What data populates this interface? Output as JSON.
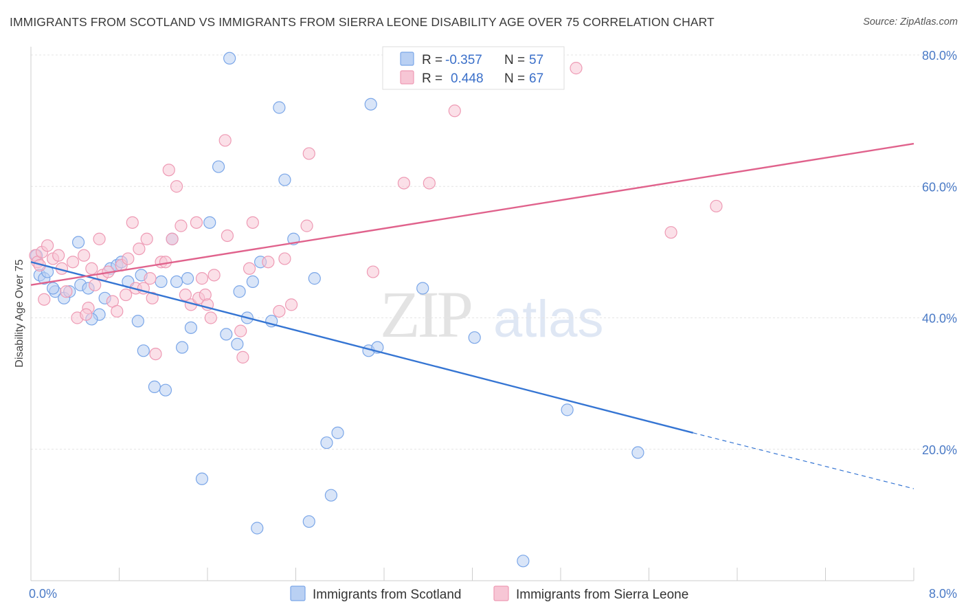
{
  "title": "IMMIGRANTS FROM SCOTLAND VS IMMIGRANTS FROM SIERRA LEONE DISABILITY AGE OVER 75 CORRELATION CHART",
  "source": "Source: ZipAtlas.com",
  "watermark": {
    "zip": "ZIP",
    "atlas": "atlas"
  },
  "legend": {
    "r_label": "R =",
    "n_label": "N =",
    "rows": [
      {
        "r": "-0.357",
        "n": "57",
        "color": "#7aa6e8",
        "fill": "#b9d0f3"
      },
      {
        "r": "0.448",
        "n": "67",
        "color": "#ee9ab4",
        "fill": "#f7c6d5"
      }
    ]
  },
  "chart_data": {
    "type": "scatter",
    "title": "IMMIGRANTS FROM SCOTLAND VS IMMIGRANTS FROM SIERRA LEONE DISABILITY AGE OVER 75 CORRELATION CHART",
    "xlabel": "",
    "ylabel": "Disability Age Over 75",
    "xlim": [
      0,
      8
    ],
    "ylim": [
      0,
      80
    ],
    "x_tick_labels": [
      "0.0%",
      "8.0%"
    ],
    "y_ticks": [
      20,
      40,
      60,
      80
    ],
    "y_tick_labels": [
      "20.0%",
      "40.0%",
      "60.0%",
      "80.0%"
    ],
    "grid": true,
    "legend_position": "top-center",
    "series": [
      {
        "name": "Immigrants from Scotland",
        "color": "#7aa6e8",
        "fill": "#b9d0f3",
        "line_color": "#3575d3",
        "trend": {
          "x0": 0,
          "y0": 48.5,
          "x1": 6.0,
          "y1": 22.5,
          "dash_to_x": 8.0,
          "dash_to_y": 14.0
        },
        "points": [
          [
            0.05,
            49.5
          ],
          [
            0.08,
            46.5
          ],
          [
            0.12,
            46.0
          ],
          [
            0.15,
            47.0
          ],
          [
            0.22,
            44.0
          ],
          [
            0.3,
            43.0
          ],
          [
            0.43,
            51.5
          ],
          [
            0.45,
            45.0
          ],
          [
            0.52,
            44.5
          ],
          [
            0.62,
            40.5
          ],
          [
            0.67,
            43.0
          ],
          [
            0.72,
            47.5
          ],
          [
            0.78,
            48.0
          ],
          [
            0.82,
            48.5
          ],
          [
            0.88,
            45.5
          ],
          [
            0.97,
            39.5
          ],
          [
            1.02,
            35.0
          ],
          [
            1.12,
            29.5
          ],
          [
            1.18,
            45.5
          ],
          [
            1.22,
            29.0
          ],
          [
            1.28,
            52.0
          ],
          [
            1.32,
            45.5
          ],
          [
            1.37,
            35.5
          ],
          [
            1.42,
            46.0
          ],
          [
            1.45,
            38.5
          ],
          [
            1.55,
            15.5
          ],
          [
            1.62,
            54.5
          ],
          [
            1.7,
            63.0
          ],
          [
            1.77,
            37.5
          ],
          [
            1.8,
            79.5
          ],
          [
            1.87,
            36.0
          ],
          [
            1.89,
            44.0
          ],
          [
            1.96,
            40.0
          ],
          [
            2.01,
            45.5
          ],
          [
            2.05,
            8.0
          ],
          [
            2.08,
            48.5
          ],
          [
            2.18,
            39.5
          ],
          [
            2.25,
            72.0
          ],
          [
            2.3,
            61.0
          ],
          [
            2.38,
            52.0
          ],
          [
            2.52,
            9.0
          ],
          [
            2.57,
            46.0
          ],
          [
            2.68,
            21.0
          ],
          [
            2.72,
            13.0
          ],
          [
            2.78,
            22.5
          ],
          [
            3.06,
            35.0
          ],
          [
            3.14,
            35.5
          ],
          [
            3.08,
            72.5
          ],
          [
            3.55,
            44.5
          ],
          [
            4.02,
            37.0
          ],
          [
            4.46,
            3.0
          ],
          [
            4.86,
            26.0
          ],
          [
            5.5,
            19.5
          ],
          [
            0.2,
            44.5
          ],
          [
            0.55,
            39.8
          ],
          [
            1.0,
            46.5
          ],
          [
            0.35,
            44.0
          ]
        ]
      },
      {
        "name": "Immigrants from Sierra Leone",
        "color": "#ee9ab4",
        "fill": "#f7c6d5",
        "line_color": "#e0628c",
        "trend": {
          "x0": 0,
          "y0": 45.0,
          "x1": 8.0,
          "y1": 66.5
        },
        "points": [
          [
            0.04,
            49.5
          ],
          [
            0.06,
            48.5
          ],
          [
            0.1,
            50.0
          ],
          [
            0.15,
            51.0
          ],
          [
            0.2,
            49.0
          ],
          [
            0.25,
            49.5
          ],
          [
            0.28,
            47.5
          ],
          [
            0.32,
            44.0
          ],
          [
            0.38,
            48.5
          ],
          [
            0.42,
            40.0
          ],
          [
            0.48,
            49.5
          ],
          [
            0.52,
            41.5
          ],
          [
            0.55,
            47.5
          ],
          [
            0.58,
            45.0
          ],
          [
            0.62,
            52.0
          ],
          [
            0.65,
            46.5
          ],
          [
            0.7,
            47.0
          ],
          [
            0.74,
            42.5
          ],
          [
            0.78,
            41.0
          ],
          [
            0.82,
            48.0
          ],
          [
            0.86,
            43.5
          ],
          [
            0.88,
            49.0
          ],
          [
            0.92,
            54.5
          ],
          [
            0.95,
            44.5
          ],
          [
            0.98,
            50.5
          ],
          [
            1.02,
            44.5
          ],
          [
            1.05,
            52.0
          ],
          [
            1.08,
            46.0
          ],
          [
            1.1,
            43.0
          ],
          [
            1.13,
            34.5
          ],
          [
            1.18,
            48.5
          ],
          [
            1.22,
            48.5
          ],
          [
            1.25,
            62.5
          ],
          [
            1.28,
            52.0
          ],
          [
            1.32,
            60.0
          ],
          [
            1.36,
            54.0
          ],
          [
            1.4,
            43.5
          ],
          [
            1.45,
            42.0
          ],
          [
            1.5,
            54.5
          ],
          [
            1.52,
            43.0
          ],
          [
            1.55,
            46.0
          ],
          [
            1.58,
            43.5
          ],
          [
            1.63,
            40.0
          ],
          [
            1.66,
            46.5
          ],
          [
            1.76,
            67.0
          ],
          [
            1.78,
            52.5
          ],
          [
            1.9,
            38.0
          ],
          [
            1.92,
            34.0
          ],
          [
            1.98,
            47.5
          ],
          [
            2.01,
            54.5
          ],
          [
            2.15,
            48.5
          ],
          [
            2.25,
            41.0
          ],
          [
            2.3,
            49.0
          ],
          [
            2.36,
            42.0
          ],
          [
            2.5,
            54.0
          ],
          [
            2.52,
            65.0
          ],
          [
            3.1,
            47.0
          ],
          [
            3.38,
            60.5
          ],
          [
            3.61,
            60.5
          ],
          [
            3.84,
            71.5
          ],
          [
            4.94,
            78.0
          ],
          [
            5.8,
            53.0
          ],
          [
            6.21,
            57.0
          ],
          [
            0.08,
            48.0
          ],
          [
            0.12,
            42.8
          ],
          [
            1.6,
            42.0
          ],
          [
            0.5,
            40.5
          ]
        ]
      }
    ]
  }
}
